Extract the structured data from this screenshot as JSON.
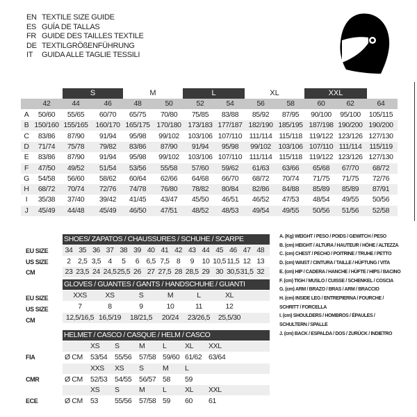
{
  "header": {
    "lines": [
      {
        "code": "EN",
        "text": "TEXTILE SIZE GUIDE"
      },
      {
        "code": "ES",
        "text": "GUÍA DE TALLAS"
      },
      {
        "code": "FR",
        "text": "GUIDE DES TAILLES TEXTILE"
      },
      {
        "code": "DE",
        "text": "TEXTILGRÖßENFÜHRUNG"
      },
      {
        "code": "IT",
        "text": "GUIDA ALLE TAGLIE TESSILI"
      }
    ],
    "icon": "helmet-icon"
  },
  "textile": {
    "bands": [
      {
        "label": "S",
        "dark": true
      },
      {
        "label": "M",
        "dark": false
      },
      {
        "label": "L",
        "dark": true
      },
      {
        "label": "XL",
        "dark": false
      },
      {
        "label": "XXL",
        "dark": true
      }
    ],
    "columns": [
      "42",
      "44",
      "46",
      "48",
      "50",
      "52",
      "54",
      "56",
      "58",
      "60",
      "62",
      "64"
    ],
    "rows": [
      {
        "letter": "A",
        "values": [
          "50/60",
          "55/65",
          "60/70",
          "65/75",
          "70/80",
          "75/85",
          "83/88",
          "85/92",
          "87/95",
          "90/100",
          "95/100",
          "105/115"
        ]
      },
      {
        "letter": "B",
        "values": [
          "150/160",
          "155/165",
          "160/170",
          "165/175",
          "170/180",
          "173/183",
          "177/187",
          "182/190",
          "185/195",
          "187/198",
          "190/200",
          "190/200"
        ]
      },
      {
        "letter": "C",
        "values": [
          "83/86",
          "87/90",
          "91/94",
          "95/98",
          "99/102",
          "103/106",
          "107/110",
          "111/114",
          "115/118",
          "119/122",
          "123/126",
          "127/130"
        ]
      },
      {
        "letter": "D",
        "values": [
          "71/74",
          "75/78",
          "79/82",
          "83/86",
          "87/90",
          "91/94",
          "95/98",
          "99/102",
          "103/106",
          "107/110",
          "111/114",
          "115/119"
        ]
      },
      {
        "letter": "E",
        "values": [
          "83/86",
          "87/90",
          "91/94",
          "95/98",
          "99/102",
          "103/106",
          "107/110",
          "111/114",
          "115/118",
          "119/122",
          "123/126",
          "127/130"
        ]
      },
      {
        "letter": "F",
        "values": [
          "47/50",
          "49/52",
          "51/54",
          "53/56",
          "55/58",
          "57/60",
          "59/62",
          "61/63",
          "63/66",
          "65/68",
          "67/70",
          "68/72"
        ]
      },
      {
        "letter": "G",
        "values": [
          "54/58",
          "56/60",
          "58/62",
          "60/64",
          "62/66",
          "64/68",
          "66/70",
          "68/72",
          "70/74",
          "71/75",
          "71/75",
          "72/76"
        ]
      },
      {
        "letter": "H",
        "values": [
          "68/72",
          "70/74",
          "72/76",
          "74/78",
          "76/80",
          "78/82",
          "80/84",
          "82/86",
          "84/88",
          "85/89",
          "85/89",
          "87/91"
        ]
      },
      {
        "letter": "I",
        "values": [
          "35/38",
          "37/40",
          "39/42",
          "41/45",
          "43/47",
          "45/50",
          "46/51",
          "46/52",
          "47/53",
          "48/54",
          "49/55",
          "50/56"
        ]
      },
      {
        "letter": "J",
        "values": [
          "45/49",
          "44/48",
          "45/49",
          "46/50",
          "47/51",
          "48/52",
          "48/53",
          "49/54",
          "49/55",
          "50/56",
          "51/56",
          "52/58"
        ]
      }
    ]
  },
  "shoes": {
    "title": "SHOES/ ZAPATOS / CHAUSSURES / SCHUHE / SCARPE",
    "rows": [
      {
        "label": "EU SIZE",
        "values": [
          "34",
          "35",
          "36",
          "37",
          "38",
          "39",
          "40",
          "41",
          "42",
          "43",
          "44",
          "45",
          "46",
          "47",
          "48"
        ]
      },
      {
        "label": "US SIZE",
        "values": [
          "2",
          "2,5",
          "3,5",
          "4",
          "5",
          "6",
          "6,5",
          "7,5",
          "8",
          "9",
          "10",
          "10,5",
          "11,5",
          "12",
          "13"
        ]
      },
      {
        "label": "CM",
        "values": [
          "23",
          "23,5",
          "24",
          "24,5",
          "25,5",
          "26",
          "27",
          "27,5",
          "28",
          "28,5",
          "29",
          "30",
          "30,5",
          "31,5",
          "32"
        ]
      }
    ]
  },
  "gloves": {
    "title": "GLOVES / GUANTES / GANTS / HANDSCHUHE / GUANTI",
    "rows": [
      {
        "label": "EU SIZE",
        "values": [
          "XXS",
          "XS",
          "S",
          "M",
          "L",
          "XL"
        ]
      },
      {
        "label": "US SIZE",
        "values": [
          "7",
          "8",
          "9",
          "10",
          "11",
          "12"
        ]
      },
      {
        "label": "CM",
        "values": [
          "12,5/16,5",
          "16,5/19",
          "18/21,5",
          "20/24",
          "23/26,5",
          "25,5/30"
        ]
      }
    ]
  },
  "helmet": {
    "title": "HELMET / CASCO / CASQUE / HELM / CASCO",
    "groups": [
      {
        "label": "FIA",
        "unit": "Ø CM",
        "sizes": [
          "XS",
          "S",
          "M",
          "L",
          "XL",
          "XXL"
        ],
        "values": [
          "53/54",
          "55/56",
          "57/58",
          "59/60",
          "61/62",
          "63/64"
        ]
      },
      {
        "label": "CMR",
        "unit": "Ø CM",
        "sizes": [
          "XXS",
          "XS",
          "S",
          "M",
          "L"
        ],
        "values": [
          "52/53",
          "54/55",
          "56/57",
          "58",
          "59"
        ]
      },
      {
        "label": "ECE",
        "unit": "Ø CM",
        "sizes": [
          "XS",
          "S",
          "M",
          "L",
          "XL",
          "XXL"
        ],
        "values": [
          "53",
          "55/56",
          "57/58",
          "59",
          "60",
          "61"
        ]
      }
    ]
  },
  "legend": [
    "A. (Kg) WEIGHT / PESO / POIDS / GEWITCH / PESO",
    "B. (cm) HEIGHT / ALTURA / HAUTEUR / HÖHE / ALTEZZA",
    "C. (cm) CHEST / PECHO / POITRINE / TRUHE / PETTO",
    "D. (cm) WAIST / CINTURA / TAILLE / HÜFTUNG / VITA",
    "E. (cm) HIP / CADERA / HANCHE / HÜFTE / HIPS /  BACINO",
    "F.  (cm) TIGH / MUSLO / CUISSE / SCHENKEL / COSCIA",
    "G. (cm) ARM  / BRAZO / BRAS / ARM / BRACCIO",
    "H. (cm) INSIDE LEG / ENTREPIERNA / FOURCHE /",
    "SCHRITT / FORCELLA",
    "I.  (cm) SHOULDERS / HOMBROS / ÉPAULES /",
    "SCHULTERN / SPALLE",
    "J. (cm) BACK / ESPALDA / DOS / ZURÜCK / INDIETRO"
  ]
}
